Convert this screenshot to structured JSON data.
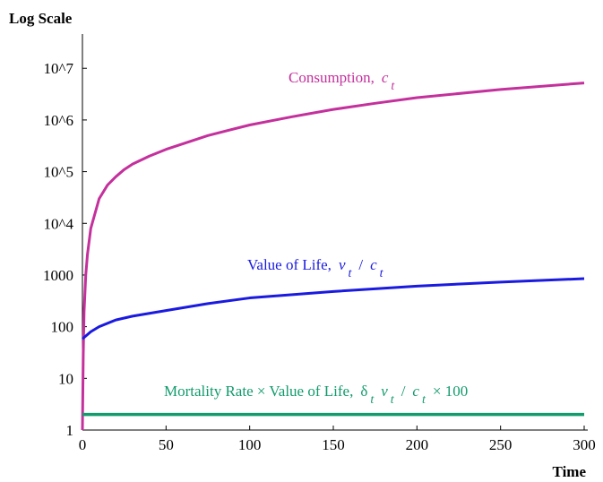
{
  "chart_data": {
    "type": "line",
    "y_label": "Log Scale",
    "x_label": "Time",
    "log_y": true,
    "xlim": [
      0,
      300
    ],
    "xticks": [
      0,
      50,
      100,
      150,
      200,
      250,
      300
    ],
    "ylim": [
      1,
      40000000
    ],
    "yticks": [
      1,
      10,
      100,
      1000,
      {
        "value": 10000,
        "label": "10^4"
      },
      {
        "value": 100000,
        "label": "10^5"
      },
      {
        "value": 1000000,
        "label": "10^6"
      },
      {
        "value": 10000000,
        "label": "10^7"
      }
    ],
    "series": [
      {
        "color": "#c4309c",
        "label_parts": [
          {
            "text": "Consumption,"
          },
          {
            "text": "c",
            "italic": true
          },
          {
            "text": "t",
            "sub": true,
            "italic": true
          }
        ],
        "x": [
          0,
          0.5,
          1,
          2,
          3,
          5,
          10,
          15,
          20,
          25,
          30,
          40,
          50,
          75,
          100,
          125,
          150,
          175,
          200,
          250,
          300
        ],
        "values": [
          1,
          30,
          200,
          1000,
          2500,
          8000,
          30000,
          55000,
          80000,
          110000,
          140000,
          200000,
          270000,
          500000,
          800000,
          1150000,
          1600000,
          2100000,
          2700000,
          3900000,
          5200000
        ]
      },
      {
        "color": "#1a1ae0",
        "label_parts": [
          {
            "text": "Value of Life,"
          },
          {
            "text": "v",
            "italic": true
          },
          {
            "text": "t",
            "sub": true,
            "italic": true
          },
          {
            "text": "/"
          },
          {
            "text": "c",
            "italic": true
          },
          {
            "text": "t",
            "sub": true,
            "italic": true
          }
        ],
        "x": [
          0,
          5,
          10,
          20,
          30,
          50,
          75,
          100,
          150,
          200,
          250,
          300
        ],
        "values": [
          58,
          80,
          100,
          135,
          160,
          205,
          280,
          360,
          480,
          610,
          730,
          850
        ]
      },
      {
        "color": "#129b6c",
        "label_parts": [
          {
            "text": "Mortality Rate × Value of Life,"
          },
          {
            "text": "δ"
          },
          {
            "text": "t",
            "sub": true,
            "italic": true
          },
          {
            "text": "v",
            "italic": true
          },
          {
            "text": "t",
            "sub": true,
            "italic": true
          },
          {
            "text": "/"
          },
          {
            "text": "c",
            "italic": true
          },
          {
            "text": "t",
            "sub": true,
            "italic": true
          },
          {
            "text": "× 100"
          }
        ],
        "x": [
          0,
          300
        ],
        "values": [
          2,
          2
        ]
      }
    ]
  }
}
